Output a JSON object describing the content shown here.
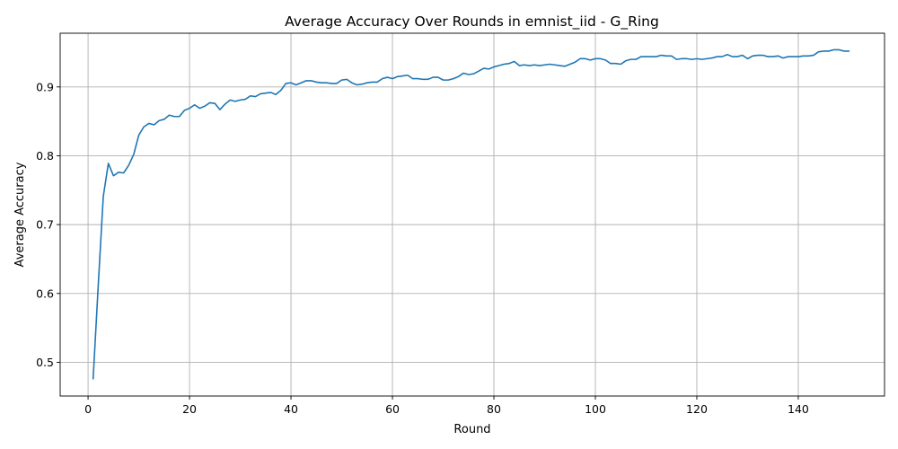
{
  "chart_data": {
    "type": "line",
    "title": "Average Accuracy Over Rounds in emnist_iid - G_Ring",
    "xlabel": "Round",
    "ylabel": "Average Accuracy",
    "xlim": [
      -5.5,
      157
    ],
    "ylim": [
      0.451,
      0.978
    ],
    "xticks": [
      0,
      20,
      40,
      60,
      80,
      100,
      120,
      140
    ],
    "yticks": [
      0.5,
      0.6,
      0.7,
      0.8,
      0.9
    ],
    "xtick_labels": [
      "0",
      "20",
      "40",
      "60",
      "80",
      "100",
      "120",
      "140"
    ],
    "ytick_labels": [
      "0.5",
      "0.6",
      "0.7",
      "0.8",
      "0.9"
    ],
    "grid": true,
    "legend": "none",
    "series": [
      {
        "color": "#1f77b4",
        "x_start": 1,
        "x_step": 1,
        "values": [
          0.476,
          0.611,
          0.741,
          0.789,
          0.771,
          0.776,
          0.775,
          0.786,
          0.802,
          0.83,
          0.842,
          0.847,
          0.845,
          0.851,
          0.853,
          0.859,
          0.857,
          0.857,
          0.866,
          0.869,
          0.874,
          0.869,
          0.872,
          0.877,
          0.876,
          0.867,
          0.875,
          0.881,
          0.879,
          0.881,
          0.882,
          0.887,
          0.886,
          0.89,
          0.891,
          0.892,
          0.889,
          0.895,
          0.905,
          0.906,
          0.903,
          0.906,
          0.909,
          0.909,
          0.907,
          0.906,
          0.906,
          0.905,
          0.905,
          0.91,
          0.911,
          0.906,
          0.903,
          0.904,
          0.906,
          0.907,
          0.907,
          0.912,
          0.914,
          0.912,
          0.915,
          0.916,
          0.917,
          0.912,
          0.912,
          0.911,
          0.911,
          0.914,
          0.914,
          0.91,
          0.91,
          0.912,
          0.915,
          0.92,
          0.918,
          0.919,
          0.923,
          0.927,
          0.926,
          0.929,
          0.931,
          0.933,
          0.934,
          0.937,
          0.931,
          0.932,
          0.931,
          0.932,
          0.931,
          0.932,
          0.933,
          0.932,
          0.931,
          0.93,
          0.933,
          0.936,
          0.941,
          0.941,
          0.939,
          0.941,
          0.941,
          0.939,
          0.934,
          0.934,
          0.933,
          0.938,
          0.94,
          0.94,
          0.944,
          0.944,
          0.944,
          0.944,
          0.946,
          0.945,
          0.945,
          0.94,
          0.941,
          0.941,
          0.94,
          0.941,
          0.94,
          0.941,
          0.942,
          0.944,
          0.944,
          0.947,
          0.944,
          0.944,
          0.946,
          0.941,
          0.945,
          0.946,
          0.946,
          0.944,
          0.944,
          0.945,
          0.942,
          0.944,
          0.944,
          0.944,
          0.945,
          0.945,
          0.946,
          0.951,
          0.952,
          0.952,
          0.954,
          0.954,
          0.952,
          0.952
        ]
      }
    ]
  }
}
